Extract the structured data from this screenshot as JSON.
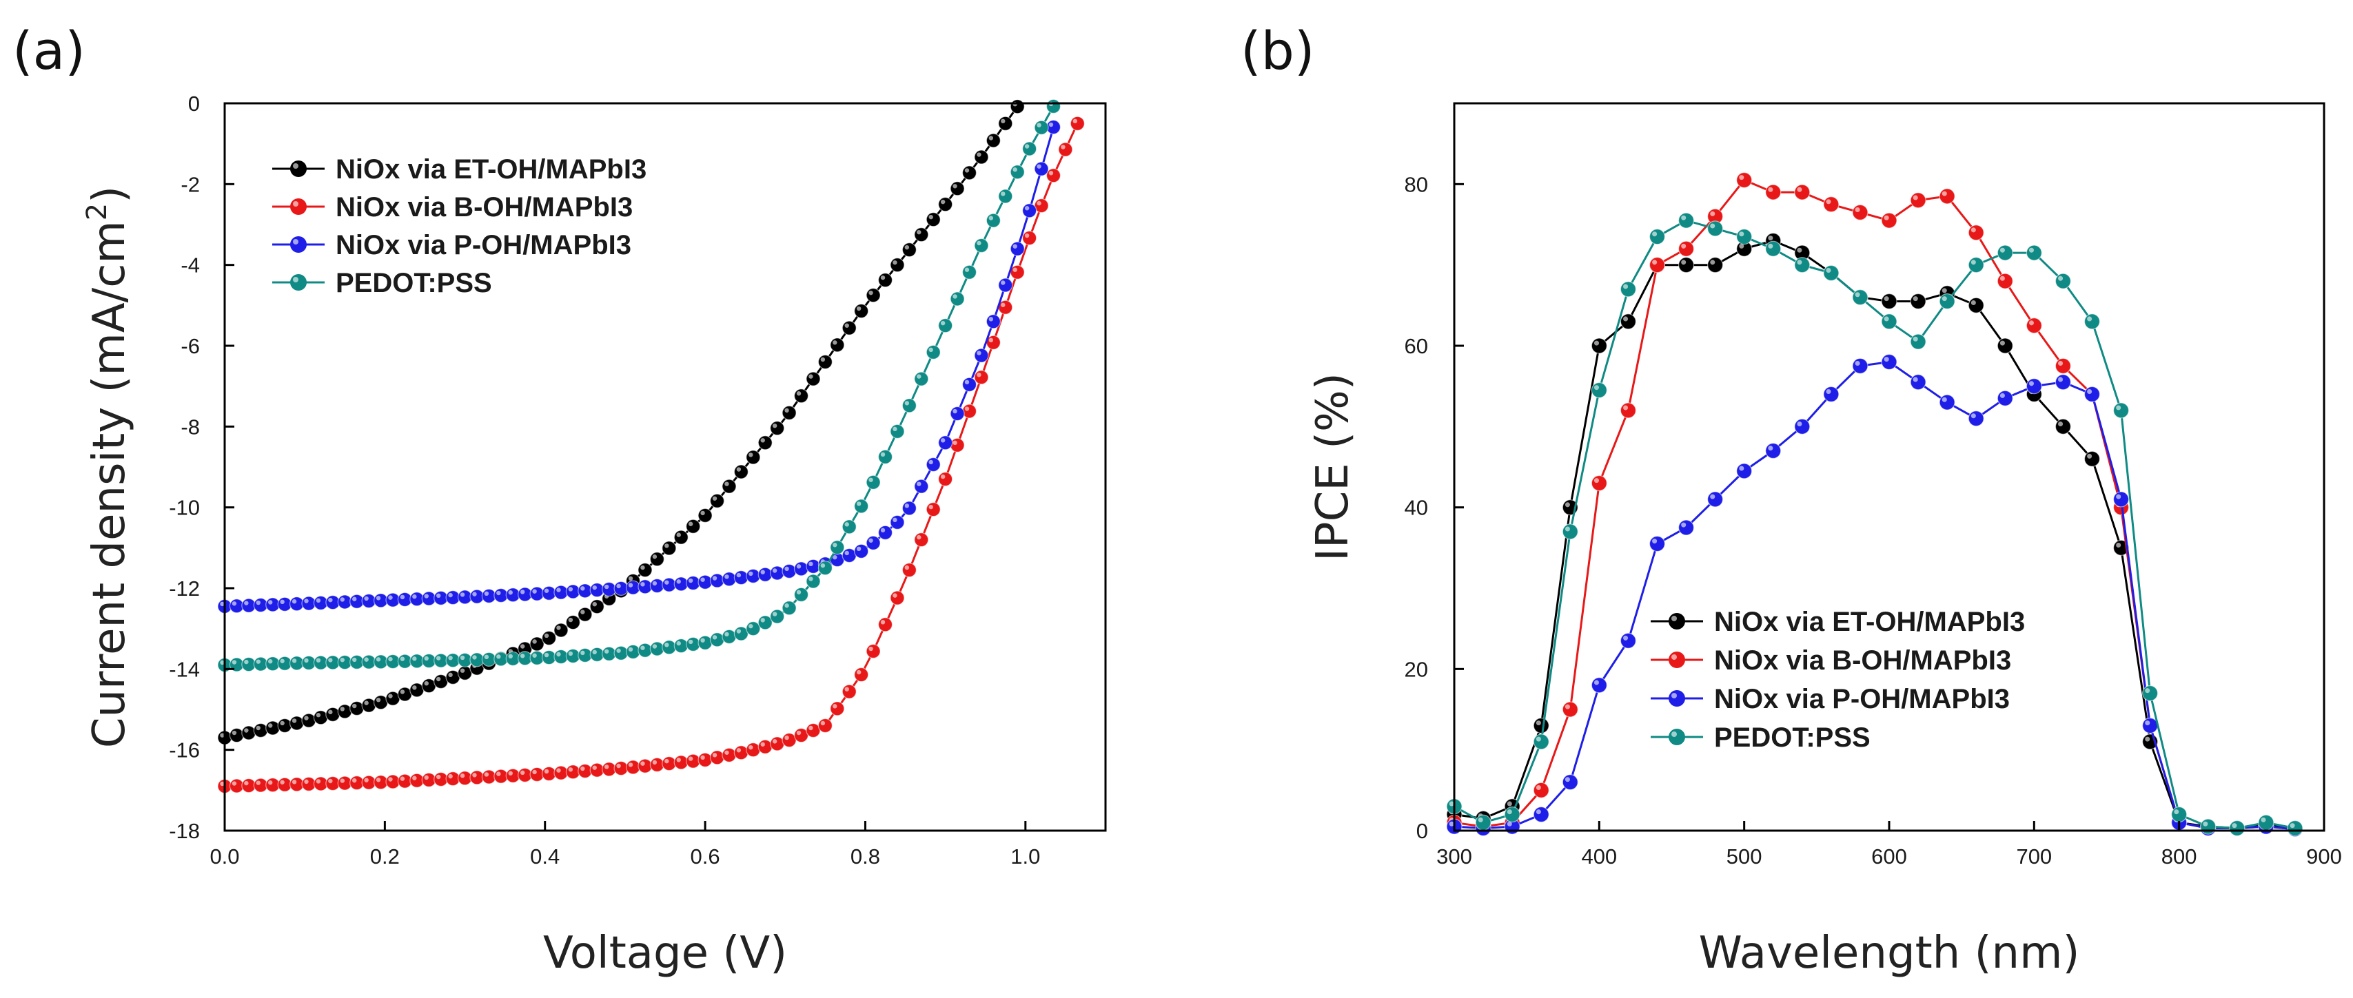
{
  "chart_data": [
    {
      "panel_label": "(a)",
      "type": "line",
      "xlabel": "Voltage (V)",
      "ylabel": "Current density (mA/cm²)",
      "ylabel_main": "Current density (mA/cm",
      "ylabel_sup": "2",
      "ylabel_tail": ")",
      "xlim": [
        0.0,
        1.1
      ],
      "ylim": [
        -18,
        0
      ],
      "xticks": [
        0.0,
        0.2,
        0.4,
        0.6,
        0.8,
        1.0
      ],
      "xtick_labels": [
        "0.0",
        "0.2",
        "0.4",
        "0.6",
        "0.8",
        "1.0"
      ],
      "yticks": [
        0,
        -2,
        -4,
        -6,
        -8,
        -10,
        -12,
        -14,
        -16,
        -18
      ],
      "ytick_labels": [
        "0",
        "-2",
        "-4",
        "-6",
        "-8",
        "-10",
        "-12",
        "-14",
        "-16",
        "-18"
      ],
      "legend_position": "top-left",
      "series": [
        {
          "name": "NiOx via ET-OH/MAPbI3",
          "color": "#000000",
          "marker_step": 0.015,
          "x": [
            0.0,
            0.1,
            0.2,
            0.3,
            0.4,
            0.5,
            0.6,
            0.7,
            0.8,
            0.9,
            0.95,
            1.0
          ],
          "y": [
            -15.7,
            -15.3,
            -14.8,
            -14.1,
            -13.3,
            -12.0,
            -10.2,
            -7.8,
            -5.0,
            -2.5,
            -1.2,
            0.2
          ]
        },
        {
          "name": "NiOx via B-OH/MAPbI3",
          "color": "#e81818",
          "marker_step": 0.015,
          "x": [
            0.0,
            0.1,
            0.2,
            0.3,
            0.4,
            0.5,
            0.6,
            0.65,
            0.7,
            0.75,
            0.8,
            0.85,
            0.9,
            0.95,
            1.0,
            1.03,
            1.065
          ],
          "y": [
            -16.9,
            -16.85,
            -16.8,
            -16.7,
            -16.6,
            -16.45,
            -16.25,
            -16.05,
            -15.8,
            -15.4,
            -14.0,
            -11.8,
            -9.3,
            -6.5,
            -3.6,
            -2.0,
            -0.5
          ]
        },
        {
          "name": "NiOx via P-OH/MAPbI3",
          "color": "#1e1ee8",
          "marker_step": 0.015,
          "x": [
            0.0,
            0.1,
            0.2,
            0.3,
            0.4,
            0.5,
            0.6,
            0.7,
            0.75,
            0.8,
            0.85,
            0.9,
            0.95,
            1.0,
            1.045
          ],
          "y": [
            -12.45,
            -12.38,
            -12.3,
            -12.22,
            -12.13,
            -12.0,
            -11.85,
            -11.6,
            -11.4,
            -11.05,
            -10.2,
            -8.4,
            -6.0,
            -3.0,
            0.1
          ]
        },
        {
          "name": "PEDOT:PSS",
          "color": "#0f8a84",
          "marker_step": 0.015,
          "x": [
            0.0,
            0.1,
            0.2,
            0.3,
            0.4,
            0.5,
            0.6,
            0.65,
            0.7,
            0.75,
            0.8,
            0.85,
            0.9,
            0.95,
            1.0,
            1.04
          ],
          "y": [
            -13.9,
            -13.85,
            -13.82,
            -13.78,
            -13.72,
            -13.6,
            -13.35,
            -13.1,
            -12.6,
            -11.5,
            -9.8,
            -7.7,
            -5.5,
            -3.3,
            -1.3,
            0.1
          ]
        }
      ]
    },
    {
      "panel_label": "(b)",
      "type": "line",
      "xlabel": "Wavelength (nm)",
      "ylabel": "IPCE (%)",
      "xlim": [
        300,
        900
      ],
      "ylim": [
        0,
        90
      ],
      "xticks": [
        300,
        400,
        500,
        600,
        700,
        800,
        900
      ],
      "xtick_labels": [
        "300",
        "400",
        "500",
        "600",
        "700",
        "800",
        "900"
      ],
      "yticks": [
        0,
        20,
        40,
        60,
        80
      ],
      "ytick_labels": [
        "0",
        "20",
        "40",
        "60",
        "80"
      ],
      "legend_position": "bottom-center",
      "series": [
        {
          "name": "NiOx via ET-OH/MAPbI3",
          "color": "#000000",
          "x": [
            300,
            320,
            340,
            360,
            380,
            400,
            420,
            440,
            460,
            480,
            500,
            520,
            540,
            560,
            580,
            600,
            620,
            640,
            660,
            680,
            700,
            720,
            740,
            760,
            780,
            800,
            820,
            840,
            860,
            880
          ],
          "y": [
            2,
            1.5,
            3,
            13,
            40,
            60,
            63,
            70,
            70,
            70,
            72,
            73,
            71.5,
            69,
            66,
            65.5,
            65.5,
            66.5,
            65,
            60,
            54,
            50,
            46,
            35,
            11,
            1,
            0.5,
            0.3,
            0.8,
            0.2
          ]
        },
        {
          "name": "NiOx via B-OH/MAPbI3",
          "color": "#e81818",
          "x": [
            300,
            320,
            340,
            360,
            380,
            400,
            420,
            440,
            460,
            480,
            500,
            520,
            540,
            560,
            580,
            600,
            620,
            640,
            660,
            680,
            700,
            720,
            740,
            760,
            780,
            800,
            820,
            840,
            860,
            880
          ],
          "y": [
            1,
            0.5,
            1,
            5,
            15,
            43,
            52,
            70,
            72,
            76,
            80.5,
            79,
            79,
            77.5,
            76.5,
            75.5,
            78,
            78.5,
            74,
            68,
            62.5,
            57.5,
            54,
            40,
            13,
            1,
            0.3,
            0.3,
            0.5,
            0.2
          ]
        },
        {
          "name": "NiOx via P-OH/MAPbI3",
          "color": "#1e1ee8",
          "x": [
            300,
            320,
            340,
            360,
            380,
            400,
            420,
            440,
            460,
            480,
            500,
            520,
            540,
            560,
            580,
            600,
            620,
            640,
            660,
            680,
            700,
            720,
            740,
            760,
            780,
            800,
            820,
            840,
            860,
            880
          ],
          "y": [
            0.5,
            0.3,
            0.5,
            2,
            6,
            18,
            23.5,
            35.5,
            37.5,
            41,
            44.5,
            47,
            50,
            54,
            57.5,
            58,
            55.5,
            53,
            51,
            53.5,
            55,
            55.5,
            54,
            41,
            13,
            1,
            0.3,
            0.3,
            0.5,
            0.2
          ]
        },
        {
          "name": "PEDOT:PSS",
          "color": "#0f8a84",
          "x": [
            300,
            320,
            340,
            360,
            380,
            400,
            420,
            440,
            460,
            480,
            500,
            520,
            540,
            560,
            580,
            600,
            620,
            640,
            660,
            680,
            700,
            720,
            740,
            760,
            780,
            800,
            820,
            840,
            860,
            880
          ],
          "y": [
            3,
            1,
            2,
            11,
            37,
            54.5,
            67,
            73.5,
            75.5,
            74.5,
            73.5,
            72,
            70,
            69,
            66,
            63,
            60.5,
            65.5,
            70,
            71.5,
            71.5,
            68,
            63,
            52,
            17,
            2,
            0.5,
            0.3,
            1,
            0.3
          ]
        }
      ]
    }
  ]
}
